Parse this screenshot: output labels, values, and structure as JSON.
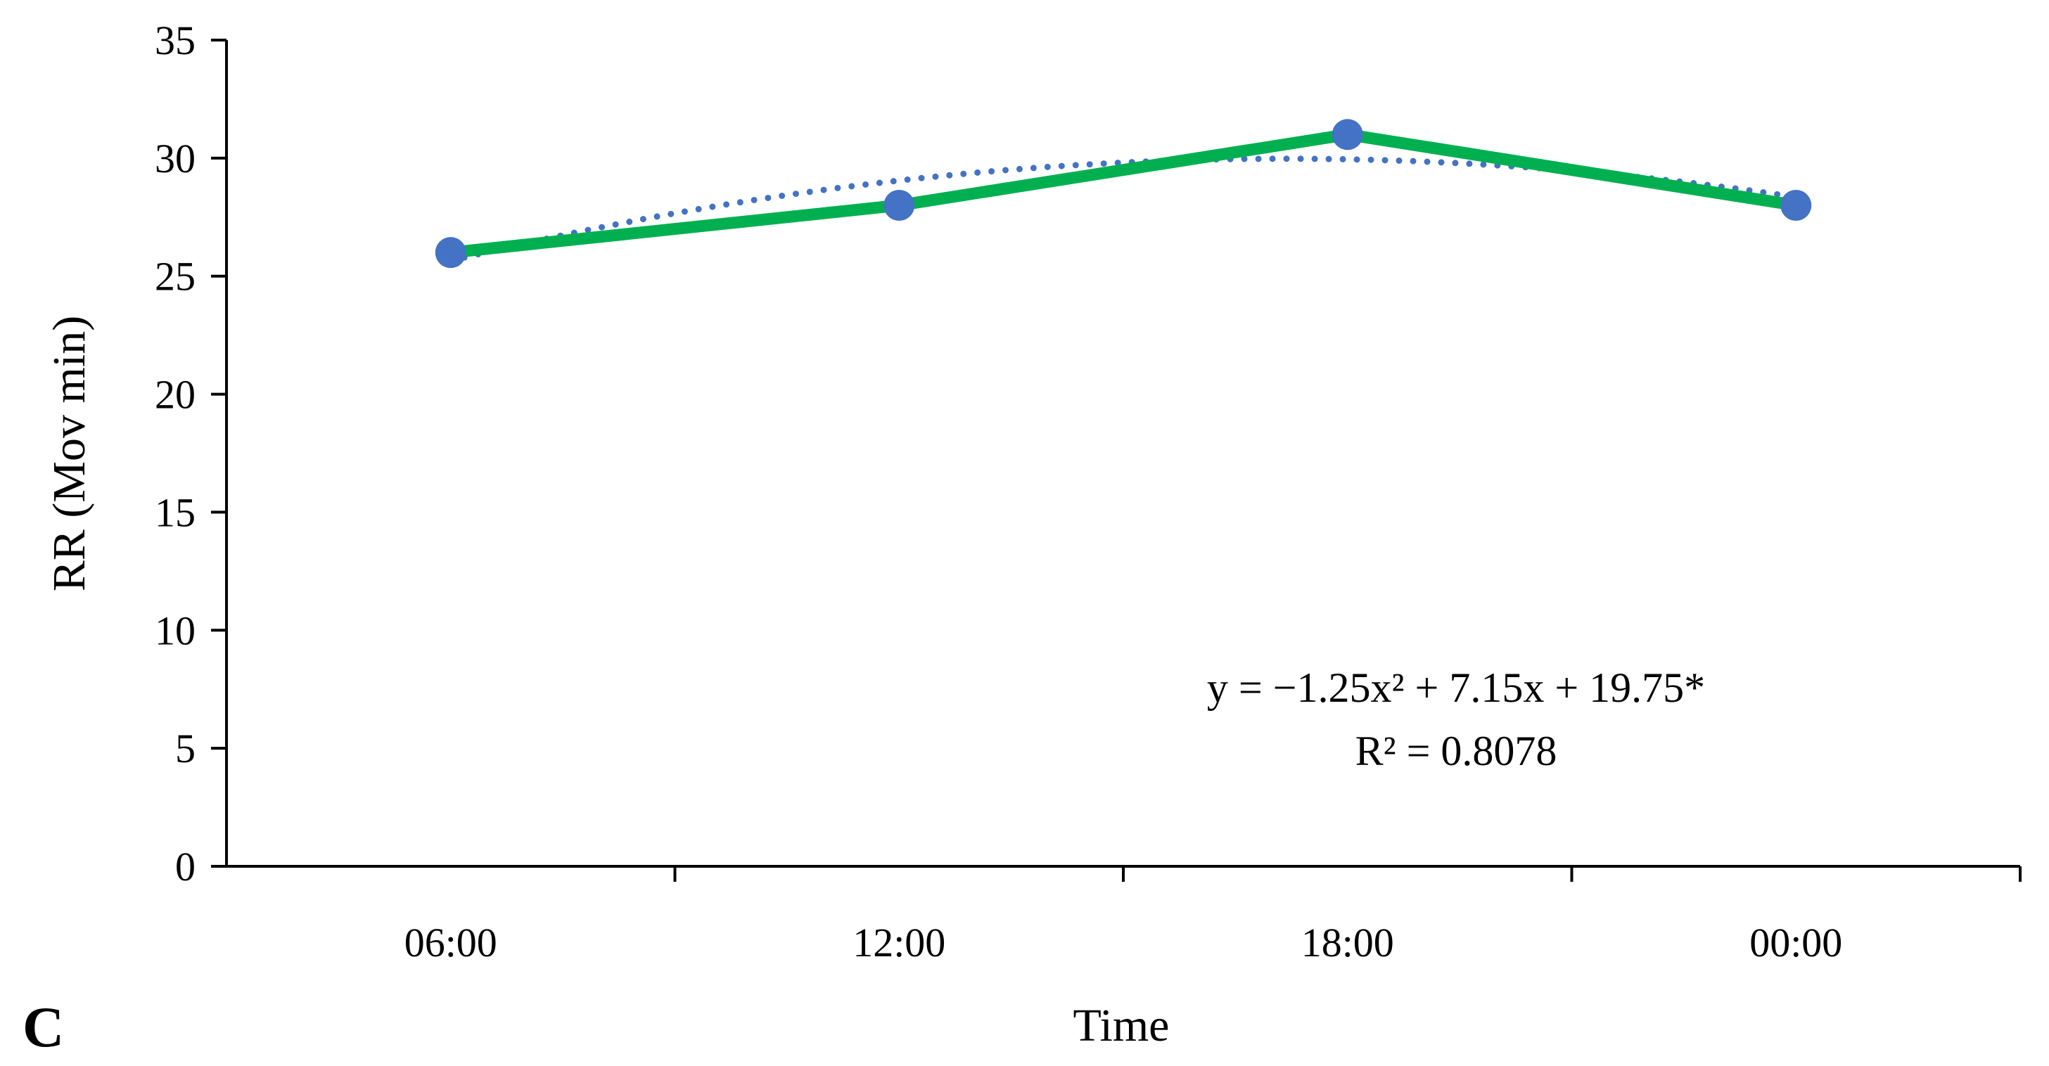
{
  "chart_data": {
    "type": "line",
    "panel_label": "C",
    "xlabel": "Time",
    "ylabel": "RR (Mov min)",
    "categories": [
      "06:00",
      "12:00",
      "18:00",
      "00:00"
    ],
    "ylim": [
      0,
      35
    ],
    "yticks": [
      0,
      5,
      10,
      15,
      20,
      25,
      30,
      35
    ],
    "series": [
      {
        "values": [
          26,
          28,
          31,
          28
        ],
        "line_color": "#00b050",
        "marker_color": "#4472c4"
      }
    ],
    "trendline": {
      "kind": "polynomial-2",
      "style": "dotted",
      "color": "#4472c4",
      "coefficients": {
        "a": -1.25,
        "b": 7.15,
        "c": 19.75
      }
    },
    "annotation": {
      "equation": "y = −1.25x² + 7.15x + 19.75*",
      "r_squared": "R² = 0.8078"
    },
    "grid": false,
    "legend": "none"
  }
}
